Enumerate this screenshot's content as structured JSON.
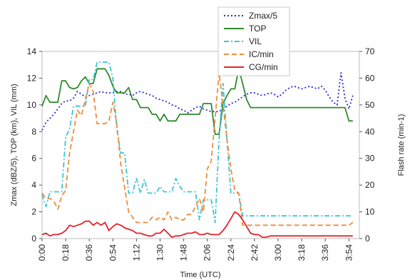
{
  "chart_data": {
    "type": "line",
    "xlabel": "Time (UTC)",
    "ylabel_left": "Zmax (dBZ/5), TOP (km), VIL (mm)",
    "ylabel_right": "Flash rate (min-1)",
    "ylim_left": [
      0,
      14
    ],
    "ylim_right": [
      0,
      70
    ],
    "yticks_left": [
      "0",
      "2",
      "4",
      "6",
      "8",
      "10",
      "12",
      "14"
    ],
    "yticks_right": [
      "0",
      "10",
      "20",
      "30",
      "40",
      "50",
      "60",
      "70"
    ],
    "x_tick_labels": [
      "0:00",
      "0:18",
      "0:36",
      "0:54",
      "1:12",
      "1:30",
      "1:48",
      "2:06",
      "2:24",
      "2:42",
      "3:00",
      "3:18",
      "3:36",
      "3:54"
    ],
    "x_tick_minutes": [
      0,
      18,
      36,
      54,
      72,
      90,
      108,
      126,
      144,
      162,
      180,
      198,
      216,
      234
    ],
    "grid": false,
    "legend_position": "top-center",
    "x": [
      0,
      3,
      6,
      9,
      12,
      15,
      18,
      21,
      24,
      27,
      30,
      33,
      36,
      39,
      42,
      45,
      48,
      51,
      54,
      57,
      60,
      63,
      66,
      69,
      72,
      75,
      78,
      81,
      84,
      87,
      90,
      93,
      96,
      99,
      102,
      105,
      108,
      111,
      114,
      117,
      120,
      123,
      126,
      129,
      132,
      135,
      138,
      141,
      144,
      147,
      150,
      153,
      156,
      159,
      162,
      165,
      168,
      171,
      174,
      177,
      180,
      183,
      186,
      189,
      192,
      195,
      198,
      201,
      204,
      207,
      210,
      213,
      216,
      219,
      222,
      225,
      228,
      231,
      234,
      237
    ],
    "series": [
      {
        "name": "Zmax/5",
        "axis": "left",
        "color": "#2b2bd6",
        "dash": "2,3",
        "values": [
          8.1,
          8.7,
          9.0,
          9.3,
          9.7,
          10.1,
          10.3,
          10.3,
          10.5,
          11.0,
          10.8,
          10.6,
          10.7,
          10.8,
          10.9,
          11.0,
          10.9,
          10.9,
          10.9,
          11.0,
          11.0,
          10.8,
          10.8,
          10.7,
          10.9,
          11.0,
          10.9,
          10.8,
          10.7,
          10.5,
          10.4,
          10.3,
          10.2,
          10.0,
          9.9,
          9.7,
          9.6,
          9.4,
          9.6,
          9.8,
          9.9,
          9.7,
          9.6,
          9.5,
          9.5,
          9.5,
          9.7,
          9.9,
          10.1,
          10.2,
          10.4,
          10.6,
          10.8,
          10.9,
          10.9,
          10.8,
          10.7,
          10.8,
          10.9,
          10.8,
          10.6,
          10.8,
          11.1,
          11.3,
          11.4,
          11.3,
          11.2,
          11.3,
          11.4,
          11.3,
          11.2,
          11.4,
          11.1,
          10.6,
          10.2,
          10.0,
          12.4,
          10.5,
          9.7,
          10.7
        ]
      },
      {
        "name": "TOP",
        "axis": "left",
        "color": "#2e8b2e",
        "dash": "",
        "values": [
          9.9,
          10.7,
          10.2,
          10.2,
          10.2,
          11.8,
          11.8,
          11.3,
          11.2,
          11.3,
          11.8,
          12.1,
          11.6,
          11.6,
          12.7,
          12.7,
          12.7,
          12.2,
          11.4,
          10.9,
          10.9,
          10.9,
          11.3,
          10.4,
          10.4,
          9.8,
          9.8,
          9.8,
          9.3,
          9.3,
          8.8,
          9.3,
          8.8,
          8.8,
          8.8,
          9.3,
          9.3,
          9.3,
          9.3,
          9.3,
          9.3,
          10.1,
          10.1,
          10.1,
          7.8,
          7.8,
          10.1,
          10.7,
          11.2,
          11.2,
          12.7,
          11.6,
          10.4,
          9.8,
          9.8,
          9.8,
          9.8,
          9.8,
          9.8,
          9.8,
          9.8,
          9.8,
          9.8,
          9.8,
          9.8,
          9.8,
          9.8,
          9.8,
          9.8,
          9.8,
          9.8,
          9.8,
          9.8,
          9.8,
          9.8,
          9.8,
          9.8,
          9.8,
          8.8,
          8.8
        ]
      },
      {
        "name": "VIL",
        "axis": "left",
        "color": "#3cc6d6",
        "dash": "7,3,2,3",
        "values": [
          3.3,
          2.4,
          3.5,
          3.5,
          3.5,
          3.5,
          7.6,
          8.2,
          9.9,
          9.9,
          9.9,
          9.9,
          11.9,
          11.9,
          13.2,
          13.2,
          13.2,
          13.2,
          12.0,
          8.2,
          6.4,
          6.4,
          3.4,
          3.4,
          4.5,
          3.4,
          4.4,
          3.4,
          3.4,
          3.4,
          3.9,
          3.5,
          3.5,
          3.5,
          4.5,
          3.9,
          3.5,
          3.5,
          3.5,
          3.5,
          1.4,
          2.9,
          2.9,
          2.9,
          1.2,
          7.4,
          11.6,
          7.4,
          3.4,
          3.4,
          3.4,
          1.7,
          1.7,
          1.7,
          1.7,
          1.7,
          1.7,
          1.7,
          1.7,
          1.7,
          1.7,
          1.7,
          1.7,
          1.7,
          1.7,
          1.7,
          1.7,
          1.7,
          1.7,
          1.7,
          1.7,
          1.7,
          1.7,
          1.7,
          1.7,
          1.7,
          1.7,
          1.7,
          1.7,
          1.7
        ]
      },
      {
        "name": "IC/min",
        "axis": "right",
        "color": "#f08c3c",
        "dash": "7,4",
        "values": [
          17,
          15,
          15,
          14,
          11,
          16,
          18,
          32,
          40,
          48,
          46,
          52,
          58,
          55,
          43,
          43,
          43,
          44,
          51,
          43,
          28,
          19,
          10,
          8,
          6,
          6,
          6,
          6,
          8,
          7,
          8,
          7,
          10,
          7,
          8,
          7,
          7,
          9,
          9,
          12,
          15,
          10,
          26,
          29,
          45,
          62,
          50,
          37,
          26,
          18,
          17,
          5,
          5,
          5,
          5,
          5,
          5,
          5,
          5,
          5,
          5,
          5,
          5,
          5,
          5,
          5,
          5,
          5,
          5,
          5,
          5,
          5,
          5,
          5,
          5,
          5,
          5,
          5,
          5,
          6
        ]
      },
      {
        "name": "CG/min",
        "axis": "right",
        "color": "#e3232b",
        "dash": "",
        "values": [
          1.5,
          2,
          1,
          1.5,
          1.5,
          2,
          3,
          5,
          4.5,
          5,
          5.5,
          6.5,
          6.5,
          5,
          6,
          5,
          6,
          3,
          4.5,
          5.5,
          5,
          4,
          3.5,
          3,
          2,
          2,
          1.5,
          1,
          1,
          2,
          2,
          3.5,
          2,
          0.5,
          1,
          1,
          1.5,
          2,
          2,
          2.5,
          1.5,
          1.5,
          2,
          1.5,
          1.5,
          1.5,
          3,
          5,
          7.5,
          10,
          9,
          7,
          4.5,
          2,
          1.5,
          1.5,
          0.5,
          0.5,
          1,
          1,
          1,
          1,
          1,
          1,
          1,
          1,
          1,
          1,
          1,
          1,
          1,
          1,
          1,
          1,
          1,
          1,
          1,
          1,
          1,
          1
        ]
      }
    ]
  }
}
